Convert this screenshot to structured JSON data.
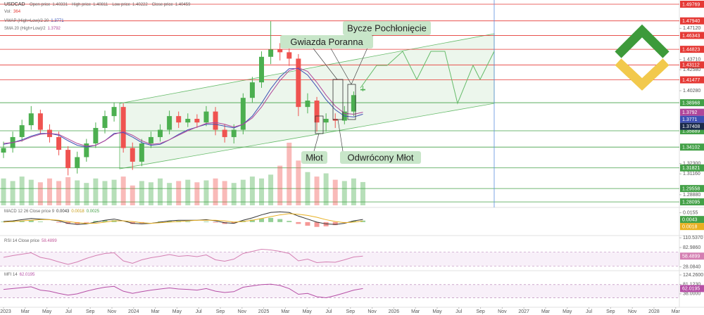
{
  "chart_data": {
    "type": "candlestick",
    "symbol": "USDCAD",
    "labels": {
      "open": "Open price",
      "high": "High price",
      "low": "Low price",
      "close": "Close price",
      "volume": "Vol:",
      "vwap": "VWAP (High+Low)/2 20",
      "sma": "SMA 20 (High+Low)/2"
    },
    "up_color": "#4caf50",
    "down_color": "#ef5350",
    "sma_color": "#b0469a",
    "vwap_color": "#3f51b5",
    "tag_color": "#1a2a4a",
    "x": [
      0,
      0.85,
      1.7,
      2.55,
      3.4,
      4.25,
      5.1,
      5.95,
      6.8,
      7.65,
      8.5,
      9.35,
      10.2,
      11.05,
      11.9,
      12.75,
      13.6,
      14.45,
      15.3,
      16.15,
      17,
      17.85,
      18.7,
      19.55,
      20.4,
      21.25,
      22.1,
      22.95,
      23.8,
      24.65,
      25.5,
      26.35,
      27.2,
      28.05,
      28.9,
      29.75,
      30.6,
      31.45,
      32.3,
      33.15
    ],
    "open": [
      1.335,
      1.34,
      1.352,
      1.365,
      1.378,
      1.36,
      1.352,
      1.338,
      1.318,
      1.33,
      1.345,
      1.362,
      1.375,
      1.385,
      1.34,
      1.325,
      1.345,
      1.352,
      1.36,
      1.375,
      1.368,
      1.372,
      1.368,
      1.38,
      1.36,
      1.352,
      1.36,
      1.395,
      1.412,
      1.44,
      1.448,
      1.445,
      1.438,
      1.385,
      1.392,
      1.368,
      1.372,
      1.37,
      1.38,
      1.40331
    ],
    "high": [
      1.347,
      1.358,
      1.371,
      1.386,
      1.382,
      1.366,
      1.358,
      1.342,
      1.336,
      1.35,
      1.368,
      1.381,
      1.39,
      1.389,
      1.346,
      1.35,
      1.358,
      1.366,
      1.381,
      1.38,
      1.378,
      1.377,
      1.386,
      1.385,
      1.366,
      1.366,
      1.4,
      1.418,
      1.446,
      1.479,
      1.455,
      1.452,
      1.443,
      1.4,
      1.396,
      1.378,
      1.378,
      1.386,
      1.402,
      1.40811
    ],
    "low": [
      1.329,
      1.335,
      1.347,
      1.36,
      1.355,
      1.346,
      1.332,
      1.31,
      1.312,
      1.325,
      1.34,
      1.356,
      1.369,
      1.335,
      1.316,
      1.32,
      1.34,
      1.347,
      1.355,
      1.362,
      1.363,
      1.362,
      1.364,
      1.354,
      1.346,
      1.345,
      1.355,
      1.39,
      1.406,
      1.432,
      1.436,
      1.43,
      1.375,
      1.378,
      1.358,
      1.358,
      1.362,
      1.366,
      1.375,
      1.40222
    ],
    "close": [
      1.34,
      1.352,
      1.365,
      1.378,
      1.36,
      1.352,
      1.338,
      1.318,
      1.33,
      1.345,
      1.362,
      1.375,
      1.385,
      1.34,
      1.325,
      1.345,
      1.352,
      1.36,
      1.375,
      1.368,
      1.372,
      1.368,
      1.38,
      1.36,
      1.352,
      1.36,
      1.395,
      1.412,
      1.44,
      1.448,
      1.445,
      1.438,
      1.385,
      1.392,
      1.368,
      1.372,
      1.37,
      1.38,
      1.398,
      1.40459
    ],
    "volume": [
      420,
      380,
      450,
      400,
      360,
      420,
      380,
      440,
      390,
      350,
      420,
      380,
      400,
      450,
      310,
      380,
      360,
      420,
      350,
      380,
      400,
      360,
      390,
      420,
      380,
      350,
      400,
      450,
      420,
      480,
      620,
      980,
      700,
      520,
      450,
      500,
      400,
      380,
      420,
      364
    ],
    "volume_ylim": [
      0,
      1100
    ],
    "sma": [
      1.345,
      1.346,
      1.348,
      1.352,
      1.355,
      1.356,
      1.355,
      1.35,
      1.345,
      1.342,
      1.343,
      1.348,
      1.355,
      1.358,
      1.354,
      1.348,
      1.344,
      1.345,
      1.349,
      1.354,
      1.359,
      1.363,
      1.367,
      1.368,
      1.366,
      1.363,
      1.366,
      1.373,
      1.385,
      1.4,
      1.414,
      1.425,
      1.428,
      1.424,
      1.412,
      1.398,
      1.386,
      1.378,
      1.377,
      1.3792
    ],
    "vwap": [
      1.344,
      1.346,
      1.349,
      1.353,
      1.356,
      1.356,
      1.354,
      1.348,
      1.343,
      1.341,
      1.343,
      1.348,
      1.356,
      1.357,
      1.352,
      1.346,
      1.343,
      1.344,
      1.349,
      1.355,
      1.36,
      1.363,
      1.366,
      1.366,
      1.364,
      1.362,
      1.366,
      1.375,
      1.389,
      1.405,
      1.418,
      1.427,
      1.427,
      1.42,
      1.407,
      1.393,
      1.382,
      1.375,
      1.374,
      1.3771
    ],
    "price_tag": 1.37408,
    "xlim": [
      -0.325,
      62.34
    ],
    "ylim": [
      1.2764,
      1.5023
    ],
    "xticks": [
      {
        "value": 0,
        "label": "2023"
      },
      {
        "value": 2,
        "label": "Mar"
      },
      {
        "value": 4,
        "label": "May"
      },
      {
        "value": 6,
        "label": "Jul"
      },
      {
        "value": 8,
        "label": "Sep"
      },
      {
        "value": 10,
        "label": "Nov"
      },
      {
        "value": 12,
        "label": "2024"
      },
      {
        "value": 14,
        "label": "Mar"
      },
      {
        "value": 16,
        "label": "May"
      },
      {
        "value": 18,
        "label": "Jul"
      },
      {
        "value": 20,
        "label": "Sep"
      },
      {
        "value": 22,
        "label": "Nov"
      },
      {
        "value": 24,
        "label": "2025"
      },
      {
        "value": 26,
        "label": "Mar"
      },
      {
        "value": 28,
        "label": "May"
      },
      {
        "value": 30,
        "label": "Jul"
      },
      {
        "value": 32,
        "label": "Sep"
      },
      {
        "value": 34,
        "label": "Nov"
      },
      {
        "value": 36,
        "label": "2026"
      },
      {
        "value": 38,
        "label": "Mar"
      },
      {
        "value": 40,
        "label": "May"
      },
      {
        "value": 42,
        "label": "Jul"
      },
      {
        "value": 44,
        "label": "Sep"
      },
      {
        "value": 46,
        "label": "Nov"
      },
      {
        "value": 48,
        "label": "2027"
      },
      {
        "value": 50,
        "label": "Mar"
      },
      {
        "value": 52,
        "label": "May"
      },
      {
        "value": 54,
        "label": "Jul"
      },
      {
        "value": 56,
        "label": "Sep"
      },
      {
        "value": 58,
        "label": "Nov"
      },
      {
        "value": 60,
        "label": "2028"
      },
      {
        "value": 62,
        "label": "Mar"
      }
    ],
    "yticks": [
      {
        "value": 1.4712,
        "label": "1.47120"
      },
      {
        "value": 1.4371,
        "label": "1.43710"
      },
      {
        "value": 1.4258,
        "label": "1.42580"
      },
      {
        "value": 1.4028,
        "label": "1.40280"
      },
      {
        "value": 1.323,
        "label": "1.32300"
      },
      {
        "value": 1.3116,
        "label": "1.31160"
      },
      {
        "value": 1.2888,
        "label": "1.28880"
      }
    ],
    "red_color": "#e53935",
    "green_color": "#43a047",
    "red_levels": [
      1.49769,
      {
        "value": 1.4794,
        "label": "1.47940"
      },
      1.46343,
      1.44823,
      1.43112,
      1.41477
    ],
    "green_levels": [
      1.38968,
      1.35889,
      1.34102,
      1.31821,
      1.29558,
      1.28095
    ],
    "channel": {
      "x": [
        10.71,
        45.26
      ],
      "lower": [
        1.3172,
        1.3889
      ],
      "upper": [
        1.3889,
        1.4653
      ]
    },
    "marker_x": 45.26,
    "forecast": {
      "x": [
        32.92,
        34.42,
        35.39,
        36.82,
        38.12,
        39.42,
        40.71,
        41.88,
        43.31,
        43.96,
        45.26
      ],
      "values": [
        1.4059,
        1.4306,
        1.4306,
        1.446,
        1.4152,
        1.446,
        1.446,
        1.389,
        1.4306,
        1.4152,
        1.446
      ]
    },
    "annotations": [
      "Bycze Pochłonięcie",
      "Gwiazda Poranna",
      "Młot",
      "Odwrócony Młot"
    ],
    "macd": {
      "label": "MACD 12 26 Close price 9",
      "macd_color": "#333333",
      "signal_color": "#e8b020",
      "ylim": [
        -0.02,
        0.022
      ],
      "yticks": [
        0.0155
      ],
      "macd": [
        0.001,
        0.002,
        0.004,
        0.006,
        0.005,
        0.004,
        0.002,
        -0.002,
        -0.004,
        -0.003,
        0.0,
        0.003,
        0.005,
        0.002,
        -0.002,
        -0.003,
        -0.002,
        0.0,
        0.002,
        0.003,
        0.003,
        0.003,
        0.004,
        0.002,
        -0.001,
        -0.002,
        0.003,
        0.007,
        0.012,
        0.016,
        0.017,
        0.016,
        0.01,
        0.005,
        0.0,
        -0.003,
        -0.004,
        -0.002,
        0.002,
        0.0043
      ],
      "signal": [
        0.0,
        0.001,
        0.002,
        0.003,
        0.004,
        0.004,
        0.003,
        0.001,
        -0.001,
        -0.002,
        -0.002,
        0.0,
        0.002,
        0.002,
        0.001,
        -0.001,
        -0.002,
        -0.001,
        0.0,
        0.001,
        0.002,
        0.003,
        0.003,
        0.003,
        0.002,
        0.0,
        0.001,
        0.003,
        0.006,
        0.009,
        0.012,
        0.014,
        0.013,
        0.011,
        0.008,
        0.004,
        0.001,
        -0.001,
        0.0,
        0.0018
      ],
      "hist": [
        0.001,
        0.001,
        0.002,
        0.003,
        0.001,
        0.0,
        -0.001,
        -0.003,
        -0.003,
        -0.001,
        0.002,
        0.003,
        0.003,
        0.0,
        -0.003,
        -0.002,
        0.0,
        0.001,
        0.002,
        0.002,
        0.001,
        0.0,
        0.001,
        -0.001,
        -0.003,
        -0.002,
        0.002,
        0.004,
        0.006,
        0.007,
        0.005,
        0.002,
        -0.003,
        -0.006,
        -0.008,
        -0.007,
        -0.005,
        -0.001,
        0.002,
        0.0025
      ]
    },
    "rsi": {
      "label": "RSI 14 Close price",
      "color": "#d47fb2",
      "ylim": [
        25,
        115
      ],
      "band": [
        30,
        70
      ],
      "yticks": [
        {
          "value": 110.537,
          "label": "110.5370"
        },
        {
          "value": 82.986,
          "label": "82.9860"
        },
        {
          "value": 28.084,
          "label": "28.0840"
        }
      ],
      "values": [
        55,
        60,
        64,
        68,
        55,
        50,
        42,
        35,
        42,
        52,
        60,
        66,
        68,
        45,
        38,
        48,
        54,
        58,
        63,
        58,
        60,
        57,
        62,
        48,
        44,
        50,
        66,
        72,
        78,
        76,
        72,
        66,
        45,
        50,
        40,
        42,
        41,
        48,
        56,
        58.4899
      ]
    },
    "mfi": {
      "label": "MFI 14",
      "color": "#b64fa6",
      "ylim": [
        -20,
        137
      ],
      "band": [
        20,
        80
      ],
      "yticks": [
        {
          "value": 124.26,
          "label": "124.2600"
        },
        {
          "value": 81.123,
          "label": "81.1230"
        },
        {
          "value": 38,
          "label": "38.0000"
        }
      ],
      "values": [
        58,
        62,
        66,
        70,
        55,
        50,
        40,
        32,
        38,
        50,
        60,
        68,
        72,
        50,
        40,
        48,
        55,
        60,
        65,
        60,
        58,
        55,
        62,
        50,
        44,
        48,
        68,
        74,
        80,
        82,
        76,
        62,
        36,
        40,
        25,
        20,
        30,
        42,
        55,
        62.0195
      ]
    }
  }
}
